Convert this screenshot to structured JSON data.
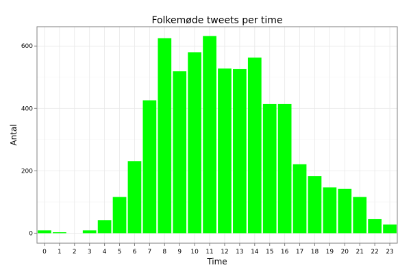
{
  "chart_data": {
    "type": "bar",
    "title": "Folkemøde tweets per time",
    "xlabel": "Time",
    "ylabel": "Antal",
    "categories": [
      "0",
      "1",
      "2",
      "3",
      "4",
      "5",
      "6",
      "7",
      "8",
      "9",
      "10",
      "11",
      "12",
      "13",
      "14",
      "15",
      "16",
      "17",
      "18",
      "19",
      "20",
      "21",
      "22",
      "23"
    ],
    "values": [
      9,
      3,
      0,
      9,
      42,
      116,
      231,
      426,
      625,
      519,
      580,
      632,
      528,
      526,
      563,
      414,
      414,
      221,
      183,
      147,
      142,
      116,
      45,
      28
    ],
    "ylim": [
      -32,
      662
    ],
    "yticks": [
      0,
      200,
      400,
      600
    ],
    "grid": true,
    "legend": "none",
    "colors": {
      "bar": "#00ff00",
      "panel_border": "#7f7f7f",
      "grid_major": "#e8e8e8",
      "grid_minor": "#f5f5f5"
    }
  }
}
